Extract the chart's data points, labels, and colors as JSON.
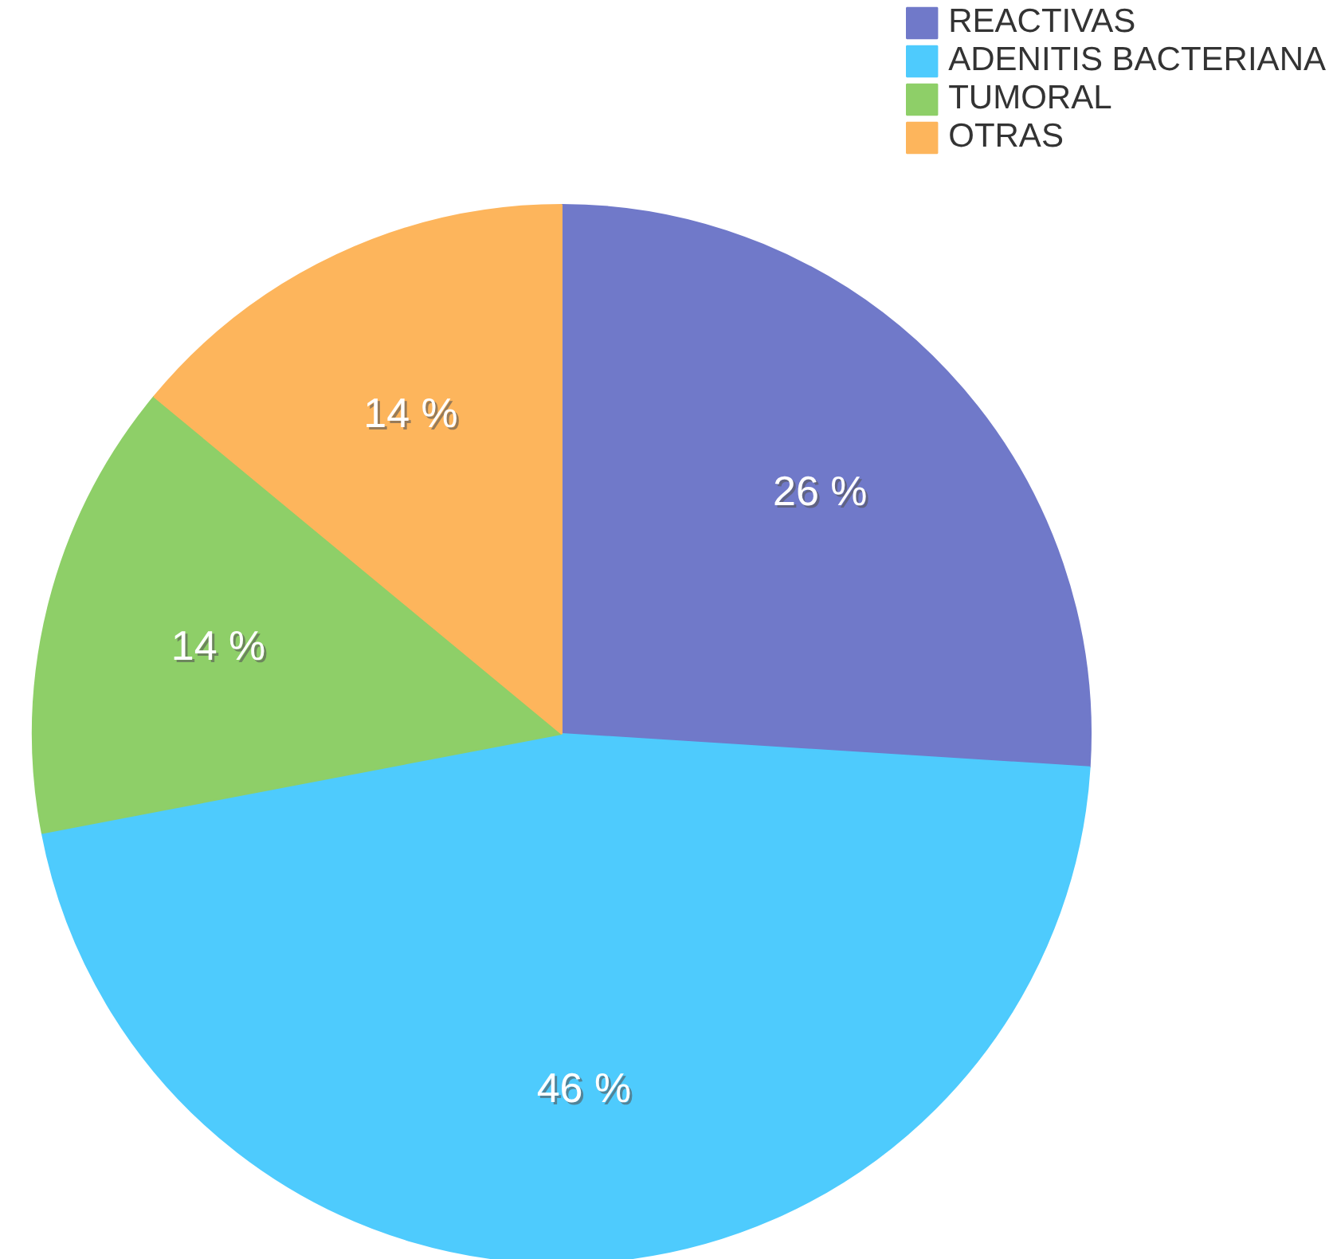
{
  "chart_data": {
    "type": "pie",
    "categories": [
      "REACTIVAS",
      "ADENITIS BACTERIANA",
      "TUMORAL",
      "OTRAS"
    ],
    "values": [
      26,
      46,
      14,
      14
    ],
    "colors": [
      "#7079c9",
      "#4ecbfd",
      "#8ecf68",
      "#fdb55c"
    ],
    "value_labels": [
      "26 %",
      "46 %",
      "14 %",
      "14 %"
    ],
    "legend": "top right"
  }
}
